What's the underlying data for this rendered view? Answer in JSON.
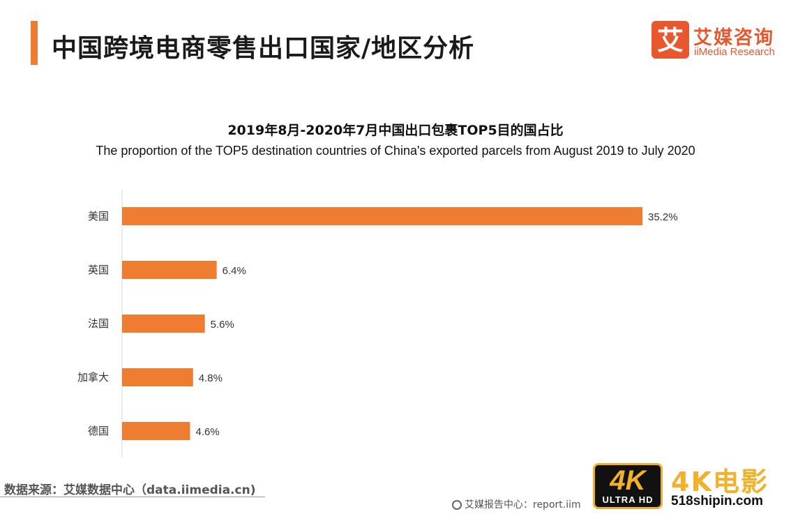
{
  "header": {
    "title": "中国跨境电商零售出口国家/地区分析",
    "accent_color": "#ee7d31"
  },
  "logo": {
    "cn": "艾媒咨询",
    "en": "iiMedia Research",
    "mark_glyph": "艾",
    "color": "#e8572d"
  },
  "chart_data": {
    "type": "bar",
    "orientation": "horizontal",
    "title": "2019年8月-2020年7月中国出口包裹TOP5目的国占比",
    "subtitle": "The proportion of the TOP5 destination countries of China's exported parcels from August 2019 to July 2020",
    "categories": [
      "美国",
      "英国",
      "法国",
      "加拿大",
      "德国"
    ],
    "values": [
      35.2,
      6.4,
      5.6,
      4.8,
      4.6
    ],
    "value_labels": [
      "35.2%",
      "6.4%",
      "5.6%",
      "4.8%",
      "4.6%"
    ],
    "unit": "%",
    "xlim": [
      0,
      35.2
    ],
    "bar_color": "#ee7d31",
    "grid": false,
    "legend": "none"
  },
  "footer": {
    "source": "数据来源：艾媒数据中心（data.iimedia.cn)",
    "report": "艾媒报告中心：report.iim"
  },
  "watermark": {
    "badge_main": "4K",
    "badge_sub": "ULTRA HD",
    "cn": "4K电影",
    "url": "518shipin.com",
    "color": "#f2b12a"
  }
}
